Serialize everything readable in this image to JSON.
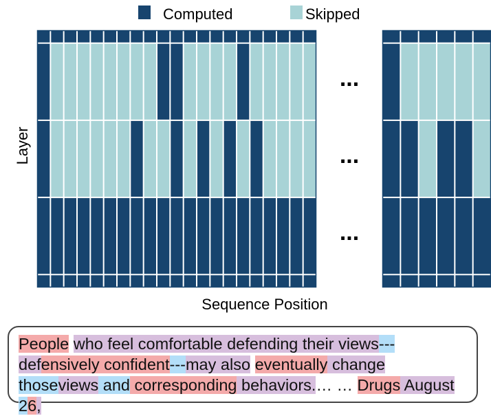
{
  "chart_data": {
    "type": "heatmap",
    "title": "",
    "xlabel": "Sequence Position",
    "ylabel": "Layer",
    "legend": [
      {
        "name": "Computed",
        "color": "#17446e",
        "value": 1
      },
      {
        "name": "Skipped",
        "color": "#a8d3d6",
        "value": 0
      }
    ],
    "value_meaning": {
      "1": "Computed",
      "0": "Skipped"
    },
    "gap_marker": "...",
    "grid": [
      {
        "rows": 1,
        "values": [
          1,
          1,
          1,
          1,
          1,
          1,
          1,
          1,
          1,
          1,
          1,
          1,
          1,
          1,
          1,
          1,
          1,
          1,
          1,
          1,
          1,
          1,
          1,
          1,
          1,
          1,
          1
        ]
      },
      {
        "rows": 6,
        "values": [
          1,
          0,
          0,
          0,
          0,
          0,
          0,
          0,
          0,
          1,
          1,
          0,
          0,
          0,
          0,
          1,
          0,
          0,
          0,
          0,
          0,
          1,
          0,
          0,
          0,
          0,
          0
        ]
      },
      {
        "rows": 6,
        "values": [
          1,
          0,
          0,
          0,
          0,
          0,
          0,
          1,
          0,
          0,
          1,
          0,
          1,
          0,
          1,
          0,
          1,
          0,
          0,
          0,
          0,
          1,
          1,
          0,
          1,
          1,
          0
        ]
      },
      {
        "rows": 6,
        "values": [
          1,
          1,
          1,
          1,
          1,
          1,
          1,
          1,
          1,
          1,
          1,
          1,
          1,
          1,
          1,
          1,
          1,
          1,
          1,
          1,
          1,
          1,
          1,
          1,
          1,
          1,
          1
        ]
      },
      {
        "rows": 1,
        "values": [
          1,
          1,
          1,
          1,
          1,
          1,
          1,
          1,
          1,
          1,
          1,
          1,
          1,
          1,
          1,
          1,
          1,
          1,
          1,
          1,
          1,
          1,
          1,
          1,
          1,
          1,
          1
        ]
      }
    ],
    "columns_before_gap": 21,
    "columns_after_gap": 6
  },
  "token_colors": {
    "red": "#f4aaaa",
    "purple": "#d7bedd",
    "blue": "#b3def8",
    "white": "#ffffff"
  },
  "tokens": [
    {
      "text": "People",
      "color": "red"
    },
    {
      "text": " ",
      "color": "white"
    },
    {
      "text": "who",
      "color": "purple"
    },
    {
      "text": " ",
      "color": "purple"
    },
    {
      "text": "feel",
      "color": "purple"
    },
    {
      "text": " ",
      "color": "purple"
    },
    {
      "text": "comfortable",
      "color": "purple"
    },
    {
      "text": " ",
      "color": "purple"
    },
    {
      "text": "defending",
      "color": "purple"
    },
    {
      "text": " ",
      "color": "purple"
    },
    {
      "text": "their",
      "color": "purple"
    },
    {
      "text": " ",
      "color": "purple"
    },
    {
      "text": "views",
      "color": "purple"
    },
    {
      "text": "---",
      "color": "blue"
    },
    {
      "text": "def",
      "color": "purple"
    },
    {
      "text": "ensively",
      "color": "red"
    },
    {
      "text": " ",
      "color": "red"
    },
    {
      "text": "confident",
      "color": "red"
    },
    {
      "text": "---",
      "color": "blue"
    },
    {
      "text": "may",
      "color": "purple"
    },
    {
      "text": " ",
      "color": "purple"
    },
    {
      "text": "also",
      "color": "purple"
    },
    {
      "text": " ",
      "color": "white"
    },
    {
      "text": "eventually",
      "color": "red"
    },
    {
      "text": " ",
      "color": "purple"
    },
    {
      "text": "change",
      "color": "purple"
    },
    {
      "text": " ",
      "color": "blue"
    },
    {
      "text": "those",
      "color": "blue"
    },
    {
      "text": "views",
      "color": "purple"
    },
    {
      "text": " ",
      "color": "blue"
    },
    {
      "text": "and",
      "color": "blue"
    },
    {
      "text": " ",
      "color": "red"
    },
    {
      "text": "corresponding",
      "color": "red"
    },
    {
      "text": " ",
      "color": "purple"
    },
    {
      "text": "behaviors.",
      "color": "purple"
    },
    {
      "text": "…",
      "color": "white"
    },
    {
      "text": " ",
      "color": "white"
    },
    {
      "text": "…",
      "color": "white"
    },
    {
      "text": " ",
      "color": "white"
    },
    {
      "text": "Drugs",
      "color": "red"
    },
    {
      "text": " ",
      "color": "purple"
    },
    {
      "text": "August",
      "color": "purple"
    },
    {
      "text": " ",
      "color": "blue"
    },
    {
      "text": "2",
      "color": "blue"
    },
    {
      "text": "6",
      "color": "red"
    },
    {
      "text": ",",
      "color": "purple"
    }
  ]
}
